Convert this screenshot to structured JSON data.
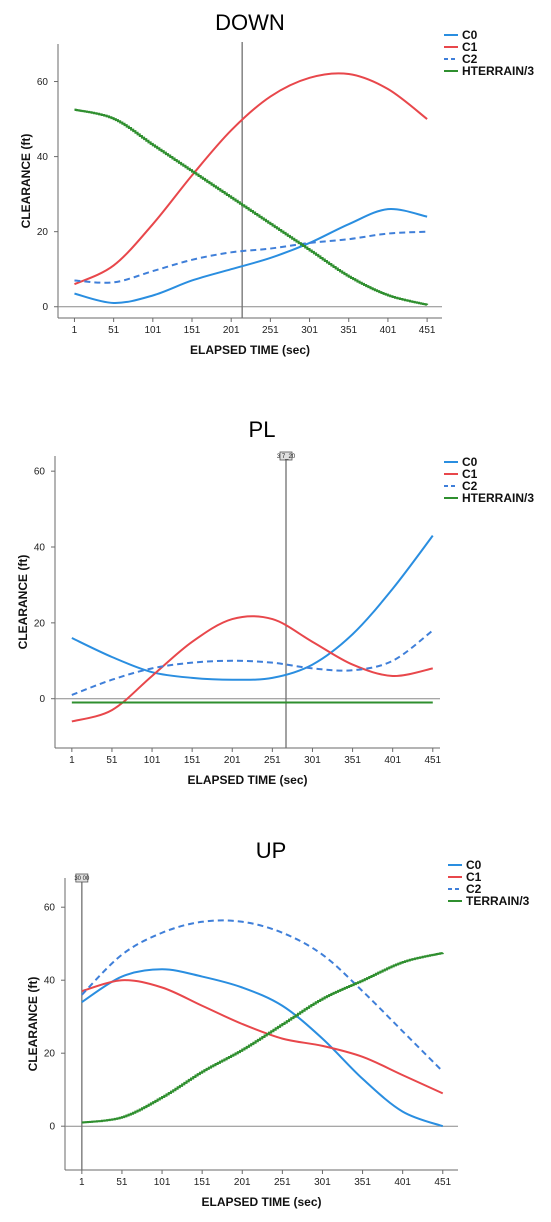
{
  "chart_data": [
    {
      "type": "line",
      "title": "DOWN",
      "xlabel": "ELAPSED TIME (sec)",
      "ylabel": "CLEARANCE (ft)",
      "xlim": [
        -20,
        470
      ],
      "ylim": [
        -3,
        70
      ],
      "xticks": [
        "1",
        "51",
        "101",
        "151",
        "201",
        "251",
        "301",
        "351",
        "401",
        "451"
      ],
      "yticks": [
        "0",
        "20",
        "40",
        "60"
      ],
      "reference_x": 215,
      "marker_label": "",
      "grid": false,
      "legend_position": "right",
      "series": [
        {
          "name": "C0",
          "color": "#2a8ee0",
          "dash": false,
          "step": false,
          "x": [
            1,
            51,
            101,
            151,
            201,
            251,
            301,
            351,
            401,
            451
          ],
          "y": [
            3.5,
            1,
            3,
            7,
            10,
            13,
            17,
            22,
            26,
            24
          ]
        },
        {
          "name": "C1",
          "color": "#e8474b",
          "dash": false,
          "step": false,
          "x": [
            1,
            51,
            101,
            151,
            201,
            251,
            301,
            351,
            401,
            451
          ],
          "y": [
            6,
            11,
            22,
            35,
            47,
            56,
            61,
            62,
            58,
            50
          ]
        },
        {
          "name": "C2",
          "color": "#3f7fd9",
          "dash": true,
          "step": false,
          "x": [
            1,
            51,
            101,
            151,
            201,
            251,
            301,
            351,
            401,
            451
          ],
          "y": [
            7,
            6.5,
            9.5,
            12.5,
            14.5,
            15.5,
            17,
            18,
            19.5,
            20
          ]
        },
        {
          "name": "HTERRAIN/3",
          "color": "#2f8f2f",
          "dash": false,
          "step": true,
          "x": [
            1,
            51,
            101,
            151,
            201,
            251,
            301,
            351,
            401,
            451
          ],
          "y": [
            52.5,
            50,
            43,
            36,
            29,
            22,
            15,
            8,
            3,
            0.5
          ]
        }
      ]
    },
    {
      "type": "line",
      "title": "PL",
      "xlabel": "ELAPSED TIME (sec)",
      "ylabel": "CLEARANCE (ft)",
      "xlim": [
        -20,
        460
      ],
      "ylim": [
        -13,
        64
      ],
      "xticks": [
        "1",
        "51",
        "101",
        "151",
        "201",
        "251",
        "301",
        "351",
        "401",
        "451"
      ],
      "yticks": [
        "0",
        "20",
        "40",
        "60"
      ],
      "reference_x": 268,
      "marker_label": "3 7_20",
      "grid": false,
      "legend_position": "right",
      "series": [
        {
          "name": "C0",
          "color": "#2a8ee0",
          "dash": false,
          "step": false,
          "x": [
            1,
            51,
            101,
            151,
            201,
            251,
            301,
            351,
            401,
            451
          ],
          "y": [
            16,
            11,
            7,
            5.5,
            5,
            5.5,
            9,
            17,
            29,
            43
          ]
        },
        {
          "name": "C1",
          "color": "#e8474b",
          "dash": false,
          "step": false,
          "x": [
            1,
            51,
            101,
            151,
            201,
            251,
            301,
            351,
            401,
            451
          ],
          "y": [
            -6,
            -3,
            6,
            15,
            21,
            21,
            15,
            9,
            6,
            8
          ]
        },
        {
          "name": "C2",
          "color": "#3f7fd9",
          "dash": true,
          "step": false,
          "x": [
            1,
            51,
            101,
            151,
            201,
            251,
            301,
            351,
            401,
            451
          ],
          "y": [
            1,
            5,
            8,
            9.5,
            10,
            9.5,
            8,
            7.5,
            10,
            18
          ]
        },
        {
          "name": "HTERRAIN/3",
          "color": "#2f8f2f",
          "dash": false,
          "step": false,
          "x": [
            1,
            451
          ],
          "y": [
            -1,
            -1
          ]
        }
      ]
    },
    {
      "type": "line",
      "title": "UP",
      "xlabel": "ELAPSED TIME (sec)",
      "ylabel": "CLEARANCE (ft)",
      "xlim": [
        -20,
        470
      ],
      "ylim": [
        -12,
        68
      ],
      "xticks": [
        "1",
        "51",
        "101",
        "151",
        "201",
        "251",
        "301",
        "351",
        "401",
        "451"
      ],
      "yticks": [
        "0",
        "20",
        "40",
        "60"
      ],
      "reference_x": 1,
      "marker_label": "30 00",
      "grid": false,
      "legend_position": "right",
      "series": [
        {
          "name": "C0",
          "color": "#2a8ee0",
          "dash": false,
          "step": false,
          "x": [
            1,
            51,
            101,
            151,
            201,
            251,
            301,
            351,
            401,
            451
          ],
          "y": [
            34,
            41,
            43,
            41,
            38,
            33,
            24,
            13,
            4,
            0
          ]
        },
        {
          "name": "C1",
          "color": "#e8474b",
          "dash": false,
          "step": false,
          "x": [
            1,
            51,
            101,
            151,
            201,
            251,
            301,
            351,
            401,
            451
          ],
          "y": [
            37,
            40,
            38,
            33,
            28,
            24,
            22,
            19,
            14,
            9
          ]
        },
        {
          "name": "C2",
          "color": "#3f7fd9",
          "dash": true,
          "step": false,
          "x": [
            1,
            51,
            101,
            151,
            201,
            251,
            301,
            351,
            401,
            451
          ],
          "y": [
            36,
            47,
            53,
            56,
            56,
            53,
            47,
            37,
            26,
            15
          ]
        },
        {
          "name": "TERRAIN/3",
          "color": "#2f8f2f",
          "dash": false,
          "step": true,
          "x": [
            1,
            51,
            101,
            151,
            201,
            251,
            301,
            351,
            401,
            451
          ],
          "y": [
            1,
            2.5,
            8,
            15,
            21,
            28,
            35,
            40,
            45,
            47.5
          ]
        }
      ]
    }
  ]
}
